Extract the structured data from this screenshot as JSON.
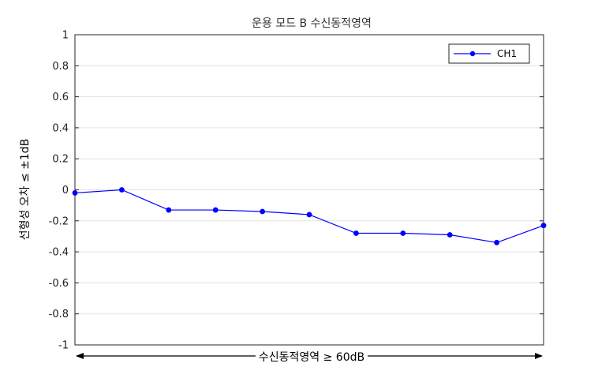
{
  "chart_data": {
    "type": "line",
    "title": "운용 모드 B 수신동적영역",
    "xlabel": "수신동적영역 ≥ 60dB",
    "ylabel": "선형성 오차 ≤ ±1dB",
    "ylim": [
      -1,
      1
    ],
    "yticks": [
      "1",
      "0.8",
      "0.6",
      "0.4",
      "0.2",
      "0",
      "-0.2",
      "-0.4",
      "-0.6",
      "-0.8",
      "-1"
    ],
    "grid": true,
    "legend_position": "top-right",
    "series": [
      {
        "name": "CH1",
        "color": "#0000ff",
        "values": [
          -0.02,
          0.0,
          -0.13,
          -0.13,
          -0.14,
          -0.16,
          -0.28,
          -0.28,
          -0.29,
          -0.34,
          -0.23
        ]
      }
    ]
  }
}
